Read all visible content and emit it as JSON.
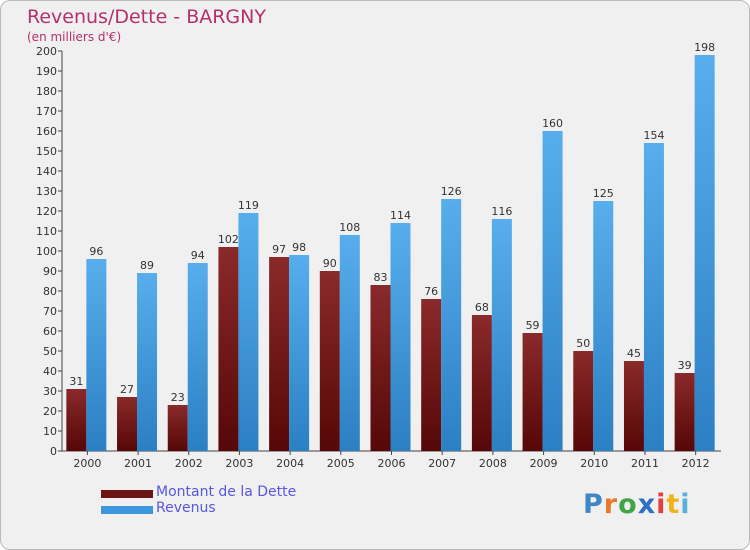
{
  "title": "Revenus/Dette - BARGNY",
  "subtitle": "(en milliers d'€)",
  "brand": {
    "text": "Proxiti",
    "letters": [
      {
        "ch": "P",
        "color": "#3f86c6"
      },
      {
        "ch": "r",
        "color": "#e8792a"
      },
      {
        "ch": "o",
        "color": "#3fa547"
      },
      {
        "ch": "x",
        "color": "#2d6fc4"
      },
      {
        "ch": "i",
        "color": "#e2413b"
      },
      {
        "ch": "t",
        "color": "#f2b318"
      },
      {
        "ch": "i",
        "color": "#5bb0d9"
      }
    ]
  },
  "legend": [
    {
      "label": "Montant de la Dette",
      "color": "#6b1414"
    },
    {
      "label": "Revenus",
      "color": "#3e97dc"
    }
  ],
  "chart_data": {
    "type": "bar",
    "title": "Revenus/Dette - BARGNY",
    "ylabel": "(en milliers d'€)",
    "xlabel": "",
    "ylim": [
      0,
      200
    ],
    "yticks": [
      0,
      10,
      20,
      30,
      40,
      50,
      60,
      70,
      80,
      90,
      100,
      110,
      120,
      130,
      140,
      150,
      160,
      170,
      180,
      190,
      200
    ],
    "grid": false,
    "categories": [
      "2000",
      "2001",
      "2002",
      "2003",
      "2004",
      "2005",
      "2006",
      "2007",
      "2008",
      "2009",
      "2010",
      "2011",
      "2012"
    ],
    "series": [
      {
        "name": "Montant de la Dette",
        "color": "#6b1414",
        "values": [
          31,
          27,
          23,
          102,
          97,
          90,
          83,
          76,
          68,
          59,
          50,
          45,
          39
        ]
      },
      {
        "name": "Revenus",
        "color": "#3e97dc",
        "values": [
          96,
          89,
          94,
          119,
          98,
          108,
          114,
          126,
          116,
          160,
          125,
          154,
          198
        ]
      }
    ]
  }
}
